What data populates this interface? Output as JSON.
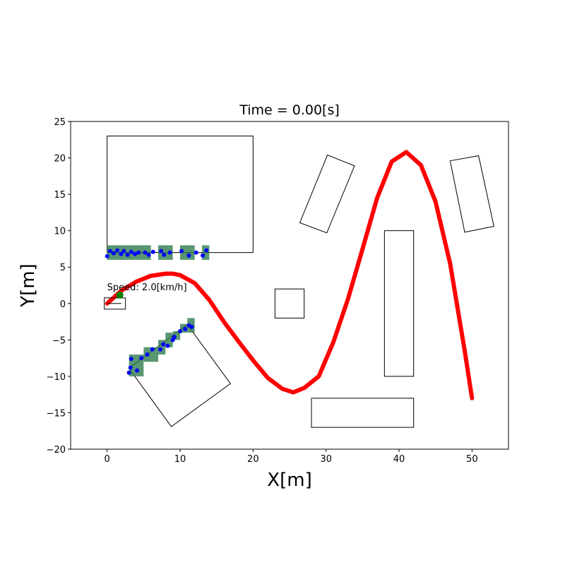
{
  "chart_data": {
    "type": "line",
    "title": "Time = 0.00[s]",
    "x_label": "X[m]",
    "y_label": "Y[m]",
    "xlim": [
      -5,
      55
    ],
    "ylim": [
      -20,
      25
    ],
    "xticks": [
      0,
      10,
      20,
      30,
      40,
      50
    ],
    "yticks": [
      {
        "value": -20,
        "label": "−20"
      },
      {
        "value": -15,
        "label": "−15"
      },
      {
        "value": -10,
        "label": "−10"
      },
      {
        "value": -5,
        "label": "−5"
      },
      0,
      5,
      10,
      15,
      20,
      25
    ],
    "annotation": {
      "text": "Speed: 2.0[km/h]",
      "x": 0,
      "y": 2.2
    },
    "path": {
      "color": "#ff0000",
      "x": [
        0,
        2,
        4,
        6,
        8,
        9,
        10,
        12,
        14,
        16,
        18,
        20,
        22,
        24,
        25.5,
        27,
        29,
        31,
        33,
        35,
        37,
        39,
        41,
        43,
        45,
        47,
        49,
        50
      ],
      "y": [
        0,
        1.8,
        3.0,
        3.8,
        4.1,
        4.1,
        3.9,
        2.8,
        0.5,
        -2.5,
        -5.2,
        -7.8,
        -10.2,
        -11.7,
        -12.2,
        -11.6,
        -10,
        -5.3,
        0.6,
        7.5,
        14.5,
        19.5,
        20.8,
        19.0,
        14,
        5.5,
        -6.5,
        -13
      ]
    },
    "points": {
      "color": "#0000ff",
      "x": [
        0,
        0.4,
        0.9,
        1.4,
        1.9,
        2.3,
        2.8,
        3.3,
        3.8,
        4.3,
        5.2,
        5.7,
        6.3,
        7.4,
        7.8,
        8.6,
        10.2,
        11.2,
        12.2,
        13.1,
        13.6,
        3,
        3.2,
        3.3,
        4.1,
        4.7,
        5.5,
        6.2,
        7.3,
        7.7,
        8.3,
        9.0,
        9.2,
        10,
        10.7,
        11.2,
        11.6
      ],
      "y": [
        6.5,
        7.2,
        6.9,
        7.3,
        6.8,
        7.2,
        6.7,
        7.1,
        6.8,
        7.0,
        7.0,
        6.7,
        7.1,
        7.2,
        6.7,
        7.0,
        7.2,
        6.6,
        7.0,
        6.6,
        7.3,
        -9.5,
        -8.8,
        -7.6,
        -9.2,
        -7.5,
        -7.0,
        -6.3,
        -6.3,
        -5.6,
        -5.8,
        -5.0,
        -4.6,
        -3.8,
        -3.5,
        -3.0,
        -3.2
      ]
    },
    "occupied_cells": [
      [
        0,
        6,
        6,
        8
      ],
      [
        7,
        6,
        9,
        8
      ],
      [
        10,
        6,
        12,
        8
      ],
      [
        13,
        6,
        14,
        8
      ],
      [
        3,
        -10,
        5,
        -7
      ],
      [
        5,
        -8,
        7,
        -6
      ],
      [
        7,
        -7,
        8,
        -5
      ],
      [
        8,
        -6,
        9,
        -4
      ],
      [
        9,
        -5,
        10,
        -3.8
      ],
      [
        10,
        -4,
        11,
        -2.8
      ],
      [
        11,
        -4,
        12,
        -2
      ]
    ],
    "cell_color": "#2e7d4f",
    "obstacles": [
      [
        [
          0,
          7
        ],
        [
          20,
          7
        ],
        [
          20,
          23
        ],
        [
          0,
          23
        ]
      ],
      [
        [
          30.2,
          20.4
        ],
        [
          33.9,
          18.9
        ],
        [
          30.1,
          9.7
        ],
        [
          26.4,
          11.1
        ]
      ],
      [
        [
          47.0,
          19.6
        ],
        [
          50.9,
          20.3
        ],
        [
          53.0,
          10.6
        ],
        [
          49.0,
          9.8
        ]
      ],
      [
        [
          38,
          -10
        ],
        [
          42,
          -10
        ],
        [
          42,
          10
        ],
        [
          38,
          10
        ]
      ],
      [
        [
          23,
          -2
        ],
        [
          27,
          -2
        ],
        [
          27,
          2
        ],
        [
          23,
          2
        ]
      ],
      [
        [
          28,
          -17
        ],
        [
          42,
          -17
        ],
        [
          42,
          -13
        ],
        [
          28,
          -13
        ]
      ],
      [
        [
          3.0,
          -8.9
        ],
        [
          11.0,
          -2.9
        ],
        [
          16.9,
          -11.0
        ],
        [
          8.8,
          -16.9
        ]
      ]
    ],
    "vehicle": {
      "x": 0,
      "y": 0
    },
    "target": {
      "x": 1.74,
      "y": 1.16,
      "color": "#008000"
    }
  }
}
